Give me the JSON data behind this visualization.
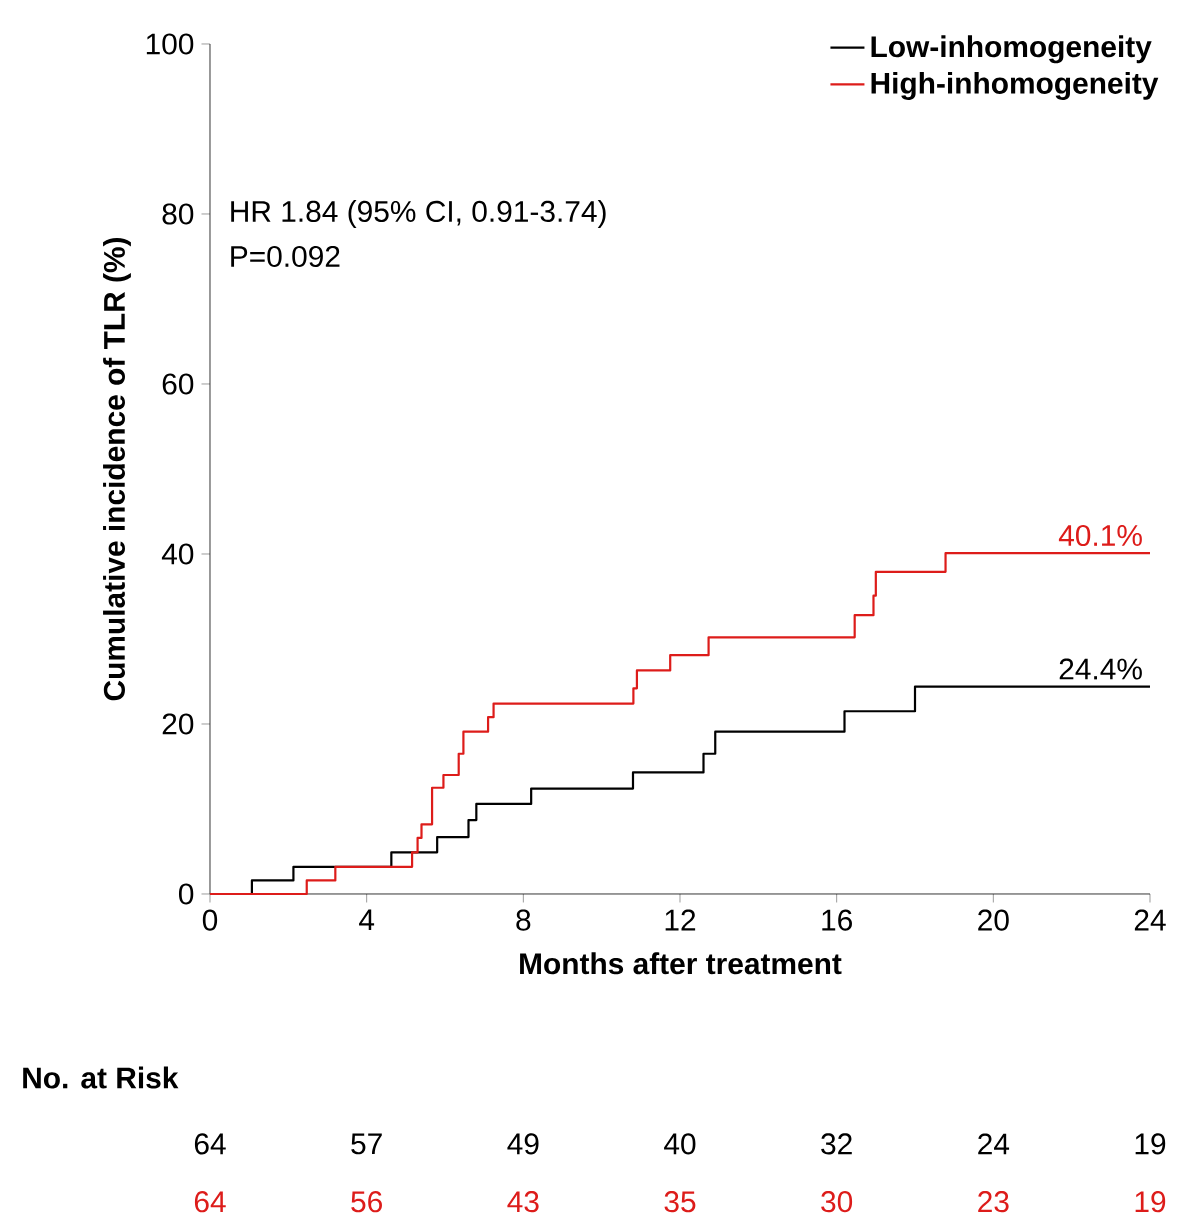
{
  "chart_data": {
    "type": "step",
    "xlabel": "Months after treatment",
    "ylabel": "Cumulative incidence of TLR (%)",
    "xlim": [
      0,
      24
    ],
    "xticks": [
      0,
      4,
      8,
      12,
      16,
      20,
      24
    ],
    "ylim": [
      0,
      100
    ],
    "yticks": [
      0,
      20,
      40,
      60,
      80,
      100
    ],
    "legend": "top right",
    "grid": false,
    "series": [
      {
        "name": "Low-inhomogeneity",
        "color": "#000000",
        "x": [
          0,
          1.07,
          2.13,
          4.63,
          5.8,
          6.6,
          6.8,
          8.2,
          10.8,
          12.6,
          12.9,
          16.2,
          18.0,
          24
        ],
        "values": [
          0,
          1.6,
          3.2,
          4.9,
          6.7,
          8.7,
          10.6,
          12.4,
          14.3,
          16.5,
          19.1,
          21.5,
          24.4,
          24.4
        ]
      },
      {
        "name": "High-inhomogeneity",
        "color": "#dd1c1a",
        "x": [
          0,
          2.47,
          3.2,
          5.16,
          5.3,
          5.4,
          5.67,
          5.96,
          6.35,
          6.47,
          7.1,
          7.24,
          10.81,
          10.9,
          11.75,
          12.73,
          16.46,
          16.94,
          17.0,
          18.78,
          24
        ],
        "values": [
          0,
          1.6,
          3.2,
          4.9,
          6.6,
          8.2,
          12.5,
          14.0,
          16.5,
          19.1,
          20.8,
          22.4,
          24.2,
          26.3,
          28.1,
          30.2,
          32.8,
          35.1,
          37.9,
          40.1,
          40.1
        ]
      }
    ],
    "annotations": [
      "HR 1.84 (95% CI,  0.91-3.74)",
      "P=0.092",
      "No. at Risk",
      "64",
      "57",
      "49",
      "40",
      "32",
      "24",
      "19",
      "64",
      "56",
      "43",
      "35",
      "30",
      "23",
      "19",
      {
        "text": "24.4%",
        "x": 24,
        "y": 24.4
      },
      {
        "text": "40.1%",
        "x": 24,
        "y": 40.1
      }
    ]
  }
}
